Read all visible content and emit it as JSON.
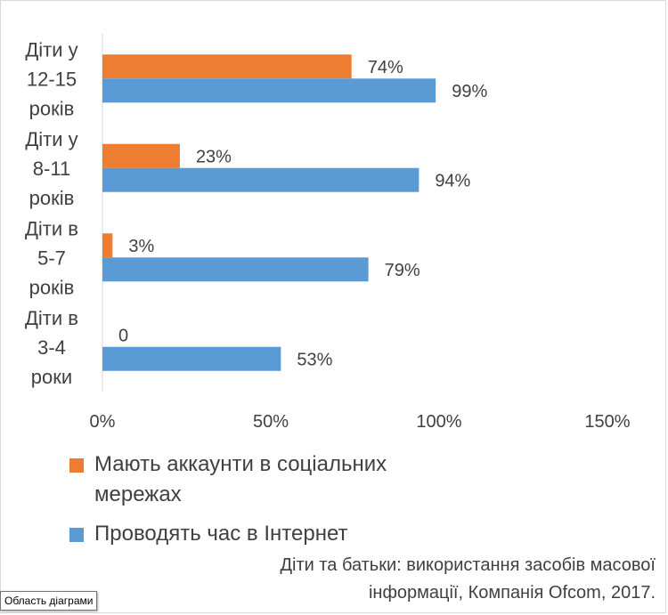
{
  "chart_data": {
    "type": "bar",
    "orientation": "horizontal",
    "categories": [
      [
        "Діти у",
        "12-15",
        "років"
      ],
      [
        "Діти у",
        "8-11",
        "років"
      ],
      [
        "Діти в",
        "5-7",
        "років"
      ],
      [
        "Діти в",
        "3-4",
        "роки"
      ]
    ],
    "series": [
      {
        "name": "Мають аккаунти в соціальних мережах",
        "color": "#ed7d31",
        "values": [
          74,
          23,
          3,
          0
        ],
        "labels": [
          "74%",
          "23%",
          "3%",
          "0"
        ]
      },
      {
        "name": "Проводять час в Інтернет",
        "color": "#5b9bd5",
        "values": [
          99,
          94,
          79,
          53
        ],
        "labels": [
          "99%",
          "94%",
          "79%",
          "53%"
        ]
      }
    ],
    "xlim": [
      0,
      150
    ],
    "xticks": [
      0,
      50,
      100,
      150
    ],
    "xtick_labels": [
      "0%",
      "50%",
      "100%",
      "150%"
    ],
    "grid": false,
    "legend_position": "bottom-left"
  },
  "legend": {
    "items": [
      {
        "label": "Мають аккаунти в соціальних мережах",
        "color": "#ed7d31"
      },
      {
        "label": "Проводять час в Інтернет",
        "color": "#5b9bd5"
      }
    ]
  },
  "source_note": {
    "line1": "Діти та батьки: використання засобів масової",
    "line2": "інформації, Компанія Ofcom, 2017."
  },
  "tooltip": {
    "text": "Область діаграми"
  }
}
